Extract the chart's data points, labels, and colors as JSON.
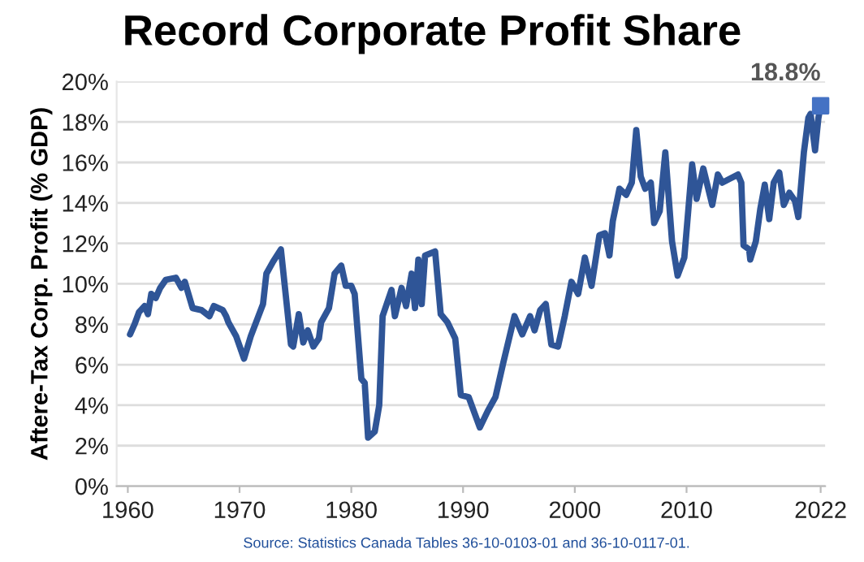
{
  "chart_data": {
    "type": "line",
    "title": "Record Corporate Profit Share",
    "ylabel": "Aftere-Tax Corp. Profit (% GDP)",
    "annotations": [
      {
        "text": "18.8%",
        "x": 2022.0,
        "y": 18.8
      },
      "Source: Statistics Canada Tables 36-10-0103-01 and 36-10-0117-01."
    ],
    "xlim": [
      1959,
      2022.4
    ],
    "xticks": [
      1960,
      1970,
      1980,
      1990,
      2000,
      2010,
      2022
    ],
    "ylim": [
      0,
      20
    ],
    "yticks": [
      {
        "value": 0,
        "label": "0%"
      },
      {
        "value": 2,
        "label": "2%"
      },
      {
        "value": 4,
        "label": "4%"
      },
      {
        "value": 6,
        "label": "6%"
      },
      {
        "value": 8,
        "label": "8%"
      },
      {
        "value": 10,
        "label": "10%"
      },
      {
        "value": 12,
        "label": "12%"
      },
      {
        "value": 14,
        "label": "14%"
      },
      {
        "value": 16,
        "label": "16%"
      },
      {
        "value": 18,
        "label": "18%"
      },
      {
        "value": 20,
        "label": "20%"
      }
    ],
    "grid": "y",
    "legend": false,
    "series": [
      {
        "color": "#2f5597",
        "x": [
          1960.2,
          1960.6,
          1961.0,
          1961.5,
          1961.8,
          1962.1,
          1962.5,
          1962.9,
          1963.4,
          1964.3,
          1964.8,
          1965.1,
          1965.8,
          1966.6,
          1967.3,
          1967.7,
          1968.5,
          1968.8,
          1969.0,
          1969.7,
          1970.4,
          1971.0,
          1972.1,
          1972.4,
          1973.0,
          1973.7,
          1974.6,
          1974.8,
          1975.3,
          1975.7,
          1976.1,
          1976.6,
          1977.1,
          1977.3,
          1978.0,
          1978.5,
          1979.1,
          1979.5,
          1980.0,
          1980.3,
          1980.9,
          1981.2,
          1981.5,
          1982.1,
          1982.5,
          1982.8,
          1983.6,
          1983.9,
          1984.5,
          1984.9,
          1985.4,
          1985.7,
          1986.0,
          1986.3,
          1986.6,
          1987.5,
          1988.0,
          1988.6,
          1989.3,
          1989.8,
          1990.5,
          1991.5,
          1992.2,
          1992.9,
          1993.6,
          1994.6,
          1995.3,
          1996.0,
          1996.4,
          1996.9,
          1997.4,
          1997.9,
          1998.5,
          1999.1,
          1999.7,
          2000.3,
          2000.9,
          2001.5,
          2002.2,
          2002.7,
          2003.1,
          2003.4,
          2004.0,
          2004.6,
          2005.1,
          2005.5,
          2005.9,
          2006.3,
          2006.8,
          2007.1,
          2007.6,
          2008.1,
          2008.7,
          2009.2,
          2009.8,
          2010.5,
          2010.9,
          2011.5,
          2012.3,
          2012.8,
          2013.2,
          2013.9,
          2014.6,
          2014.9,
          2015.1,
          2015.6,
          2015.7,
          2016.2,
          2016.6,
          2017.0,
          2017.4,
          2017.8,
          2018.3,
          2018.7,
          2019.2,
          2019.7,
          2020.0,
          2020.5,
          2020.9,
          2021.1,
          2021.5,
          2021.8,
          2022.0
        ],
        "values": [
          7.5,
          8.0,
          8.6,
          8.9,
          8.5,
          9.5,
          9.3,
          9.8,
          10.2,
          10.3,
          9.8,
          10.1,
          8.8,
          8.7,
          8.4,
          8.9,
          8.7,
          8.4,
          8.1,
          7.4,
          6.3,
          7.4,
          9.0,
          10.5,
          11.1,
          11.7,
          7.0,
          6.9,
          8.5,
          7.1,
          7.7,
          6.9,
          7.3,
          8.1,
          8.8,
          10.5,
          10.9,
          9.9,
          9.9,
          9.5,
          5.3,
          5.1,
          2.4,
          2.7,
          4.0,
          8.4,
          9.7,
          8.4,
          9.8,
          8.9,
          10.5,
          8.8,
          11.2,
          9.0,
          11.4,
          11.6,
          8.5,
          8.1,
          7.3,
          4.5,
          4.4,
          2.9,
          3.7,
          4.4,
          6.1,
          8.4,
          7.5,
          8.4,
          7.7,
          8.7,
          9.0,
          7.0,
          6.9,
          8.4,
          10.1,
          9.5,
          11.3,
          9.9,
          12.4,
          12.5,
          11.4,
          13.1,
          14.7,
          14.4,
          15.0,
          17.6,
          15.3,
          14.7,
          15.0,
          13.0,
          13.6,
          16.5,
          12.1,
          10.4,
          11.3,
          15.9,
          14.2,
          15.7,
          13.9,
          15.4,
          15.0,
          15.2,
          15.4,
          15.0,
          11.9,
          11.7,
          11.2,
          12.1,
          13.7,
          14.9,
          13.2,
          15.0,
          15.5,
          13.9,
          14.5,
          14.1,
          13.3,
          16.5,
          18.2,
          18.4,
          16.6,
          18.2,
          18.8
        ]
      },
      {
        "type": "scatter",
        "marker": "square",
        "color": "#4472c4",
        "x": [
          2022.0
        ],
        "values": [
          18.8
        ]
      }
    ]
  }
}
